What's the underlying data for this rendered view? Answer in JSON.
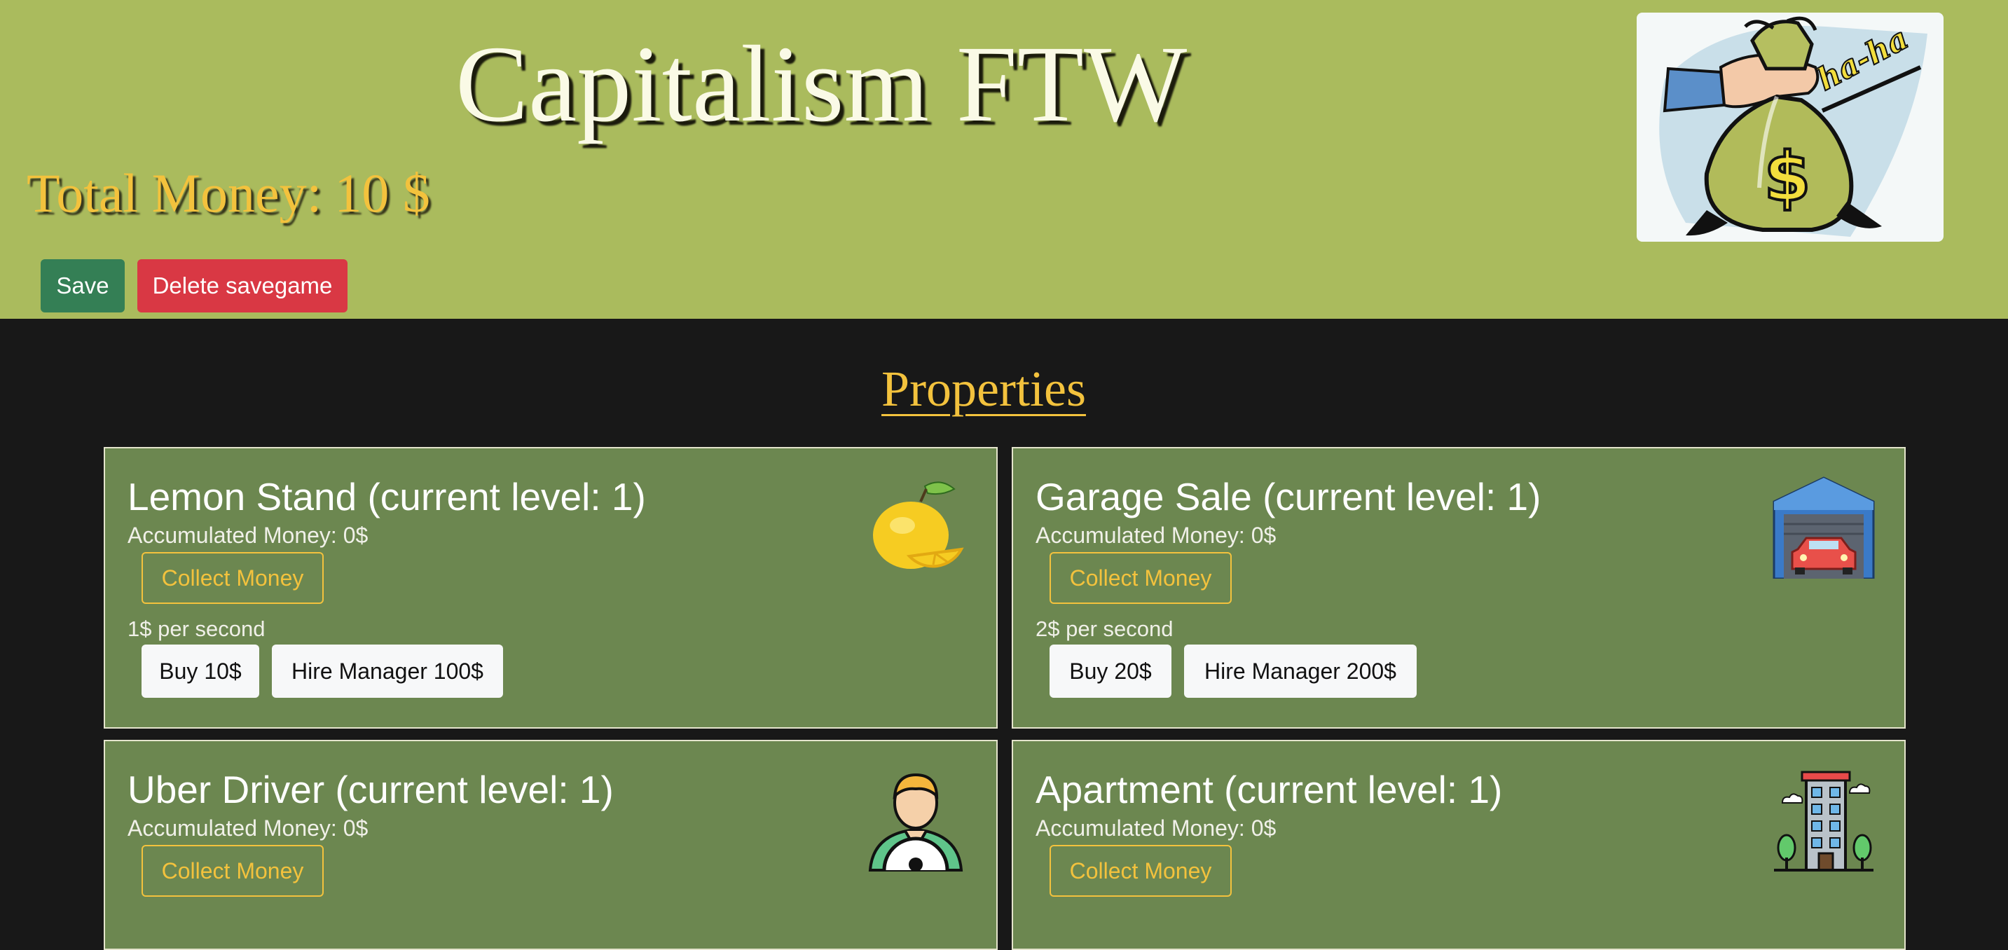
{
  "header": {
    "title": "Capitalism FTW",
    "total_label": "Total Money:",
    "total_value": "10 $",
    "save_label": "Save",
    "delete_label": "Delete savegame",
    "logo_text": "ha-ha"
  },
  "properties": {
    "heading": "Properties",
    "items": [
      {
        "title": "Lemon Stand (current level: 1)",
        "accumulated": "Accumulated Money: 0$",
        "collect_label": "Collect Money",
        "rate": "1$ per second",
        "buy_label": "Buy 10$",
        "manager_label": "Hire Manager 100$",
        "icon": "lemon-icon"
      },
      {
        "title": "Garage Sale (current level: 1)",
        "accumulated": "Accumulated Money: 0$",
        "collect_label": "Collect Money",
        "rate": "2$ per second",
        "buy_label": "Buy 20$",
        "manager_label": "Hire Manager 200$",
        "icon": "garage-icon"
      },
      {
        "title": "Uber Driver (current level: 1)",
        "accumulated": "Accumulated Money: 0$",
        "collect_label": "Collect Money",
        "icon": "driver-icon"
      },
      {
        "title": "Apartment (current level: 1)",
        "accumulated": "Accumulated Money: 0$",
        "collect_label": "Collect Money",
        "icon": "apartment-icon"
      }
    ]
  },
  "colors": {
    "header_bg": "#aabb5d",
    "page_bg": "#181818",
    "card_bg": "#6c8750",
    "accent_gold": "#f3c23d",
    "save_green": "#347f55",
    "delete_red": "#d93844"
  }
}
